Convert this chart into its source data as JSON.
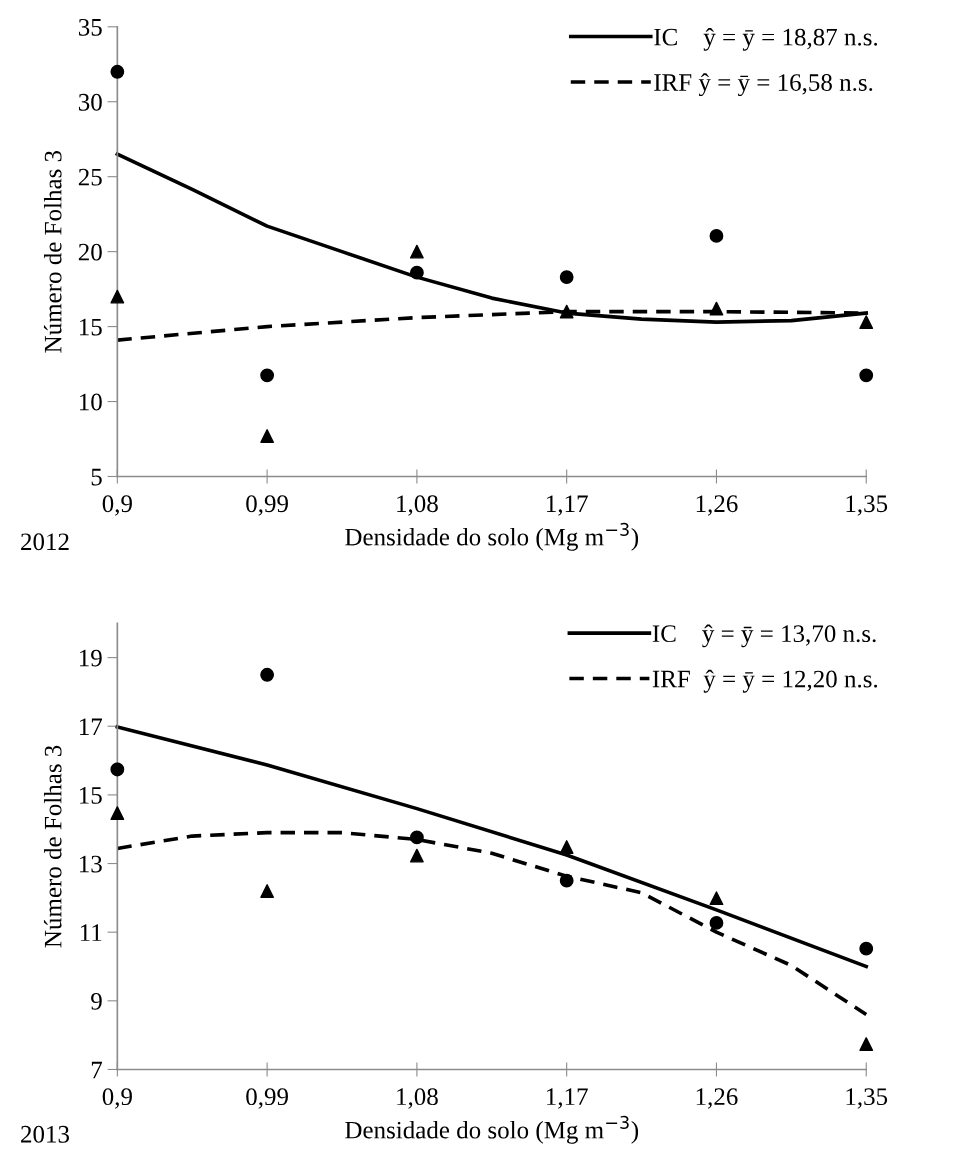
{
  "chart_data": [
    {
      "type": "scatter",
      "x": [
        0.9,
        0.99,
        1.08,
        1.17,
        1.26,
        1.35
      ],
      "xlabel": "Densidade do solo (Mg m$^{−3}$)",
      "ylabel": "Número de Folhas 3",
      "annotations": [
        "2012"
      ],
      "xlim": [
        0.9,
        1.35
      ],
      "xticks": [
        {
          "value": 0.9,
          "label": "0,9"
        },
        {
          "value": 0.99,
          "label": "0,99"
        },
        {
          "value": 1.08,
          "label": "1,08"
        },
        {
          "value": 1.17,
          "label": "1,17"
        },
        {
          "value": 1.26,
          "label": "1,26"
        },
        {
          "value": 1.35,
          "label": "1,35"
        }
      ],
      "ylim": [
        5,
        35
      ],
      "yticks": [
        5,
        10,
        15,
        20,
        25,
        30,
        35
      ],
      "grid": false,
      "legend": "top right",
      "series": [
        {
          "marker": "circle",
          "color": "#000000",
          "values": [
            32,
            11.75,
            18.6,
            18.3,
            21.05,
            11.75
          ]
        },
        {
          "marker": "triangle",
          "color": "#000000",
          "values": [
            17,
            7.7,
            20,
            16,
            16.2,
            15.3
          ]
        },
        {
          "type": "line",
          "name": "IC    ŷ = ȳ = 18,87 n.s.",
          "line_style": "solid",
          "marker": "none",
          "color": "#000000",
          "x": [
            0.9,
            0.945,
            0.99,
            1.035,
            1.08,
            1.125,
            1.17,
            1.215,
            1.26,
            1.305,
            1.35
          ],
          "values": [
            26.5,
            24.15,
            21.7,
            20.0,
            18.3,
            16.9,
            15.9,
            15.5,
            15.3,
            15.4,
            15.9
          ]
        },
        {
          "type": "line",
          "name": "IRF ŷ = ȳ = 16,58 n.s.",
          "line_style": "dashed",
          "marker": "none",
          "color": "#000000",
          "x": [
            0.9,
            0.99,
            1.08,
            1.17,
            1.26,
            1.35
          ],
          "values": [
            14.1,
            15.0,
            15.6,
            16.0,
            16.0,
            15.9
          ]
        }
      ]
    },
    {
      "type": "scatter",
      "x": [
        0.9,
        0.99,
        1.08,
        1.17,
        1.26,
        1.35
      ],
      "xlabel": "Densidade do solo (Mg m$^{−3}$)",
      "ylabel": "Número de Folhas 3",
      "annotations": [
        "2013"
      ],
      "xlim": [
        0.9,
        1.35
      ],
      "xticks": [
        {
          "value": 0.9,
          "label": "0,9"
        },
        {
          "value": 0.99,
          "label": "0,99"
        },
        {
          "value": 1.08,
          "label": "1,08"
        },
        {
          "value": 1.17,
          "label": "1,17"
        },
        {
          "value": 1.26,
          "label": "1,26"
        },
        {
          "value": 1.35,
          "label": "1,35"
        }
      ],
      "ylim": [
        7,
        20
      ],
      "yticks": [
        7,
        9,
        11,
        13,
        15,
        17,
        19
      ],
      "grid": false,
      "legend": "top right",
      "series": [
        {
          "marker": "circle",
          "color": "#000000",
          "values": [
            15.74,
            18.5,
            13.76,
            12.5,
            11.27,
            10.52
          ]
        },
        {
          "marker": "triangle",
          "color": "#000000",
          "values": [
            14.47,
            12.2,
            13.23,
            13.48,
            11.99,
            7.74
          ]
        },
        {
          "type": "line",
          "name": "IC    ŷ = ȳ = 13,70 n.s.",
          "line_style": "solid",
          "marker": "none",
          "color": "#000000",
          "x": [
            0.9,
            0.99,
            1.08,
            1.17,
            1.26,
            1.35
          ],
          "values": [
            16.98,
            15.87,
            14.6,
            13.25,
            11.65,
            10.0
          ]
        },
        {
          "type": "line",
          "name": "IRF  ŷ = ȳ = 12,20 n.s.",
          "line_style": "dashed",
          "marker": "none",
          "color": "#000000",
          "x": [
            0.9,
            0.945,
            0.99,
            1.035,
            1.08,
            1.125,
            1.17,
            1.215,
            1.26,
            1.305,
            1.35
          ],
          "values": [
            13.44,
            13.8,
            13.9,
            13.9,
            13.7,
            13.3,
            12.63,
            12.15,
            11.0,
            10.03,
            8.6
          ]
        }
      ]
    }
  ]
}
